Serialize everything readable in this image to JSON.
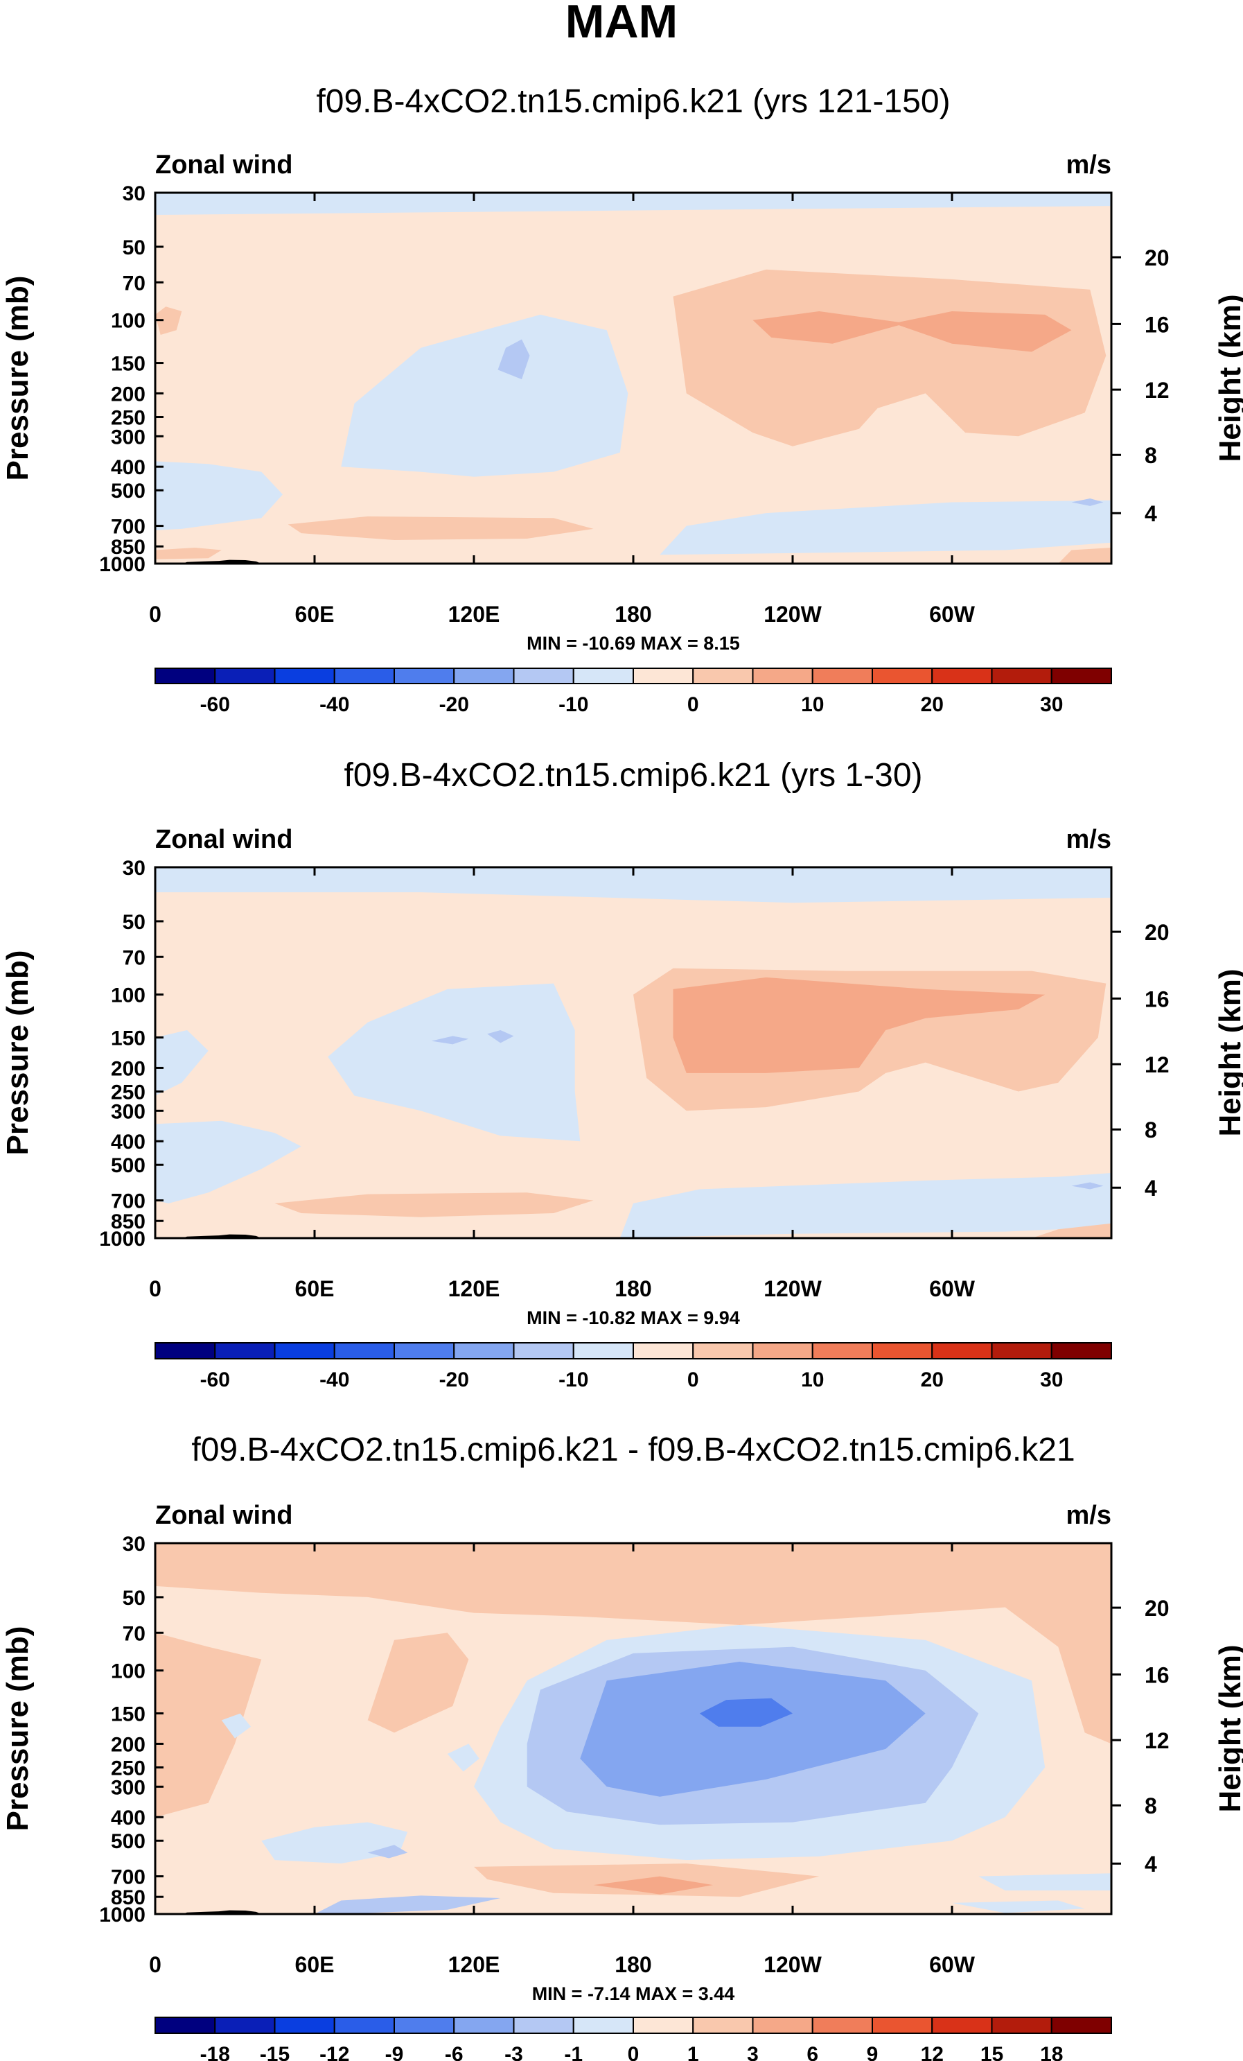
{
  "figure": {
    "season_title": "MAM"
  },
  "colors": {
    "wind_levels": [
      "#00007f",
      "#0a1fb7",
      "#0a3ee0",
      "#2a5de8",
      "#4f7ded",
      "#84a6f0",
      "#b4c8f3",
      "#d6e6f8",
      "#fde6d6",
      "#f9c8ad",
      "#f5a888",
      "#f07d5a",
      "#ea5530",
      "#d93218",
      "#b31c0c",
      "#7f0000"
    ],
    "diff_levels": [
      "#00007f",
      "#0a1fb7",
      "#0a3ee0",
      "#2a5de8",
      "#4f7ded",
      "#84a6f0",
      "#b4c8f3",
      "#d6e6f8",
      "#fde6d6",
      "#f9c8ad",
      "#f5a888",
      "#f07d5a",
      "#ea5530",
      "#d93218",
      "#b31c0c",
      "#7f0000"
    ]
  },
  "chart_data": [
    {
      "type": "heatmap",
      "title": "f09.B-4xCO2.tn15.cmip6.k21 (yrs 121-150)",
      "left_label": "Zonal wind",
      "right_label": "m/s",
      "ylabel": "Pressure (mb)",
      "ylabel_right": "Height (km)",
      "x_ticks": [
        "0",
        "60E",
        "120E",
        "180",
        "120W",
        "60W"
      ],
      "x_range": [
        0,
        360
      ],
      "y_ticks": [
        "30",
        "50",
        "70",
        "100",
        "150",
        "200",
        "250",
        "300",
        "400",
        "500",
        "700",
        "850",
        "1000"
      ],
      "y_range_mb": [
        30,
        1000
      ],
      "height_ticks": [
        "20",
        "16",
        "12",
        "8",
        "4"
      ],
      "stats_text": "MIN = -10.69  MAX =   8.15",
      "min": -10.69,
      "max": 8.15,
      "colorbar_labels": [
        "-60",
        "-40",
        "-20",
        "-10",
        "0",
        "10",
        "20",
        "30"
      ]
    },
    {
      "type": "heatmap",
      "title": "f09.B-4xCO2.tn15.cmip6.k21 (yrs 1-30)",
      "left_label": "Zonal wind",
      "right_label": "m/s",
      "ylabel": "Pressure (mb)",
      "ylabel_right": "Height (km)",
      "x_ticks": [
        "0",
        "60E",
        "120E",
        "180",
        "120W",
        "60W"
      ],
      "x_range": [
        0,
        360
      ],
      "y_ticks": [
        "30",
        "50",
        "70",
        "100",
        "150",
        "200",
        "250",
        "300",
        "400",
        "500",
        "700",
        "850",
        "1000"
      ],
      "y_range_mb": [
        30,
        1000
      ],
      "height_ticks": [
        "20",
        "16",
        "12",
        "8",
        "4"
      ],
      "stats_text": "MIN = -10.82  MAX =   9.94",
      "min": -10.82,
      "max": 9.94,
      "colorbar_labels": [
        "-60",
        "-40",
        "-20",
        "-10",
        "0",
        "10",
        "20",
        "30"
      ]
    },
    {
      "type": "heatmap",
      "title": "f09.B-4xCO2.tn15.cmip6.k21 - f09.B-4xCO2.tn15.cmip6.k21",
      "left_label": "Zonal wind",
      "right_label": "m/s",
      "ylabel": "Pressure (mb)",
      "ylabel_right": "Height (km)",
      "x_ticks": [
        "0",
        "60E",
        "120E",
        "180",
        "120W",
        "60W"
      ],
      "x_range": [
        0,
        360
      ],
      "y_ticks": [
        "30",
        "50",
        "70",
        "100",
        "150",
        "200",
        "250",
        "300",
        "400",
        "500",
        "700",
        "850",
        "1000"
      ],
      "y_range_mb": [
        30,
        1000
      ],
      "height_ticks": [
        "20",
        "16",
        "12",
        "8",
        "4"
      ],
      "stats_text": "MIN =  -7.14  MAX =   3.44",
      "min": -7.14,
      "max": 3.44,
      "colorbar_labels": [
        "-18",
        "-15",
        "-12",
        "-9",
        "-6",
        "-3",
        "-1",
        "0",
        "1",
        "3",
        "6",
        "9",
        "12",
        "15",
        "18"
      ]
    }
  ]
}
